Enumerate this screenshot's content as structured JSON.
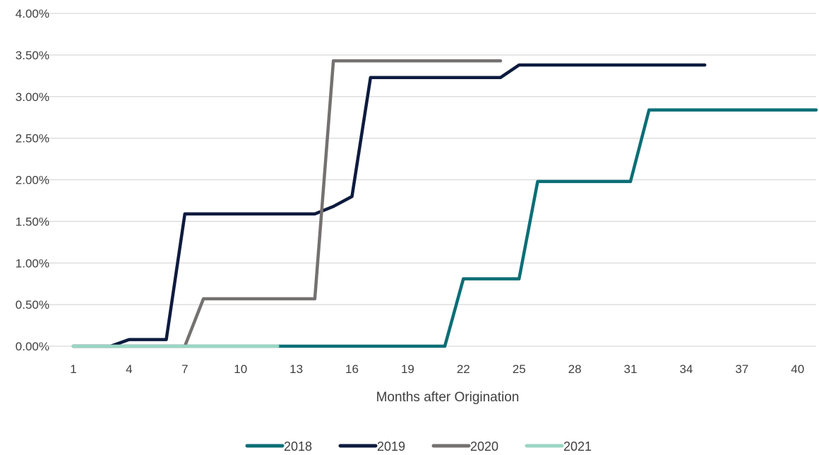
{
  "chart_data": {
    "type": "line",
    "title": "",
    "xlabel": "Months after Origination",
    "ylabel": "",
    "xlim": [
      1,
      41
    ],
    "ylim": [
      0,
      0.04
    ],
    "x_ticks": [
      1,
      4,
      7,
      10,
      13,
      16,
      19,
      22,
      25,
      28,
      31,
      34,
      37,
      40
    ],
    "y_ticks": [
      0,
      0.005,
      0.01,
      0.015,
      0.02,
      0.025,
      0.03,
      0.035,
      0.04
    ],
    "y_tick_labels": [
      "0.00%",
      "0.50%",
      "1.00%",
      "1.50%",
      "2.00%",
      "2.50%",
      "3.00%",
      "3.50%",
      "4.00%"
    ],
    "grid": "horizontal",
    "legend_position": "bottom",
    "series": [
      {
        "name": "2018",
        "color": "#0b6e76",
        "x": [
          1,
          2,
          3,
          4,
          5,
          6,
          7,
          8,
          9,
          10,
          11,
          12,
          13,
          14,
          15,
          16,
          17,
          18,
          19,
          20,
          21,
          22,
          23,
          24,
          25,
          26,
          27,
          28,
          29,
          30,
          31,
          32,
          33,
          34,
          35,
          36,
          37,
          38,
          39,
          40,
          41
        ],
        "values": [
          0,
          0,
          0,
          0,
          0,
          0,
          0,
          0,
          0,
          0,
          0,
          0,
          0,
          0,
          0,
          0,
          0,
          0,
          0,
          0,
          0,
          0.0081,
          0.0081,
          0.0081,
          0.0081,
          0.0198,
          0.0198,
          0.0198,
          0.0198,
          0.0198,
          0.0198,
          0.0284,
          0.0284,
          0.0284,
          0.0284,
          0.0284,
          0.0284,
          0.0284,
          0.0284,
          0.0284,
          0.0284
        ]
      },
      {
        "name": "2019",
        "color": "#0d1b3e",
        "x": [
          1,
          2,
          3,
          4,
          5,
          6,
          7,
          8,
          9,
          10,
          11,
          12,
          13,
          14,
          15,
          16,
          17,
          18,
          19,
          20,
          21,
          22,
          23,
          24,
          25,
          26,
          27,
          28,
          29,
          30,
          31,
          32,
          33,
          34,
          35
        ],
        "values": [
          0,
          0,
          0,
          0.0008,
          0.0008,
          0.0008,
          0.0159,
          0.0159,
          0.0159,
          0.0159,
          0.0159,
          0.0159,
          0.0159,
          0.0159,
          0.0168,
          0.018,
          0.0323,
          0.0323,
          0.0323,
          0.0323,
          0.0323,
          0.0323,
          0.0323,
          0.0323,
          0.0338,
          0.0338,
          0.0338,
          0.0338,
          0.0338,
          0.0338,
          0.0338,
          0.0338,
          0.0338,
          0.0338,
          0.0338
        ]
      },
      {
        "name": "2020",
        "color": "#757171",
        "x": [
          1,
          2,
          3,
          4,
          5,
          6,
          7,
          8,
          9,
          10,
          11,
          12,
          13,
          14,
          15,
          16,
          17,
          18,
          19,
          20,
          21,
          22,
          23,
          24
        ],
        "values": [
          0,
          0,
          0,
          0,
          0,
          0,
          0,
          0.0057,
          0.0057,
          0.0057,
          0.0057,
          0.0057,
          0.0057,
          0.0057,
          0.0343,
          0.0343,
          0.0343,
          0.0343,
          0.0343,
          0.0343,
          0.0343,
          0.0343,
          0.0343,
          0.0343
        ]
      },
      {
        "name": "2021",
        "color": "#9ad6c4",
        "x": [
          1,
          2,
          3,
          4,
          5,
          6,
          7,
          8,
          9,
          10,
          11,
          12
        ],
        "values": [
          0,
          0,
          0,
          0,
          0,
          0,
          0,
          0,
          0,
          0,
          0,
          0
        ]
      }
    ]
  }
}
